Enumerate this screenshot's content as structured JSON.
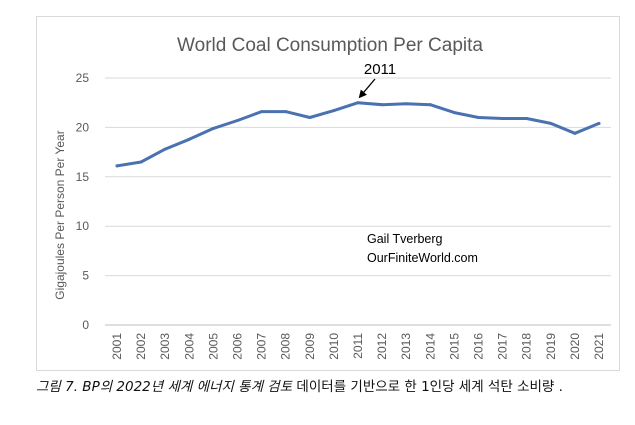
{
  "chart_data": {
    "type": "line",
    "title": "World Coal Consumption Per Capita",
    "xlabel": "",
    "ylabel": "Gigajoules Per Person Per Year",
    "ylim": [
      0,
      25
    ],
    "yticks": [
      0,
      5,
      10,
      15,
      20,
      25
    ],
    "grid": true,
    "categories": [
      "2001",
      "2002",
      "2003",
      "2004",
      "2005",
      "2006",
      "2007",
      "2008",
      "2009",
      "2010",
      "2011",
      "2012",
      "2013",
      "2014",
      "2015",
      "2016",
      "2017",
      "2018",
      "2019",
      "2020",
      "2021"
    ],
    "series": [
      {
        "name": "Coal consumption per capita",
        "color": "#4a72b0",
        "values": [
          16.1,
          16.5,
          17.8,
          18.8,
          19.9,
          20.7,
          21.6,
          21.6,
          21.0,
          21.7,
          22.5,
          22.3,
          22.4,
          22.3,
          21.5,
          21.0,
          20.9,
          20.9,
          20.4,
          19.4,
          20.4
        ]
      }
    ],
    "annotations": [
      {
        "text": "2011",
        "target_category": "2011"
      }
    ],
    "credit": {
      "line1": "Gail Tverberg",
      "line2": "OurFiniteWorld.com"
    }
  },
  "caption": {
    "italic_part": "그림 7. BP의 2022년 세계 에너지 통계 검토",
    "normal_part": " 데이터를 기반으로 한 1인당 세계 석탄 소비량 ."
  }
}
